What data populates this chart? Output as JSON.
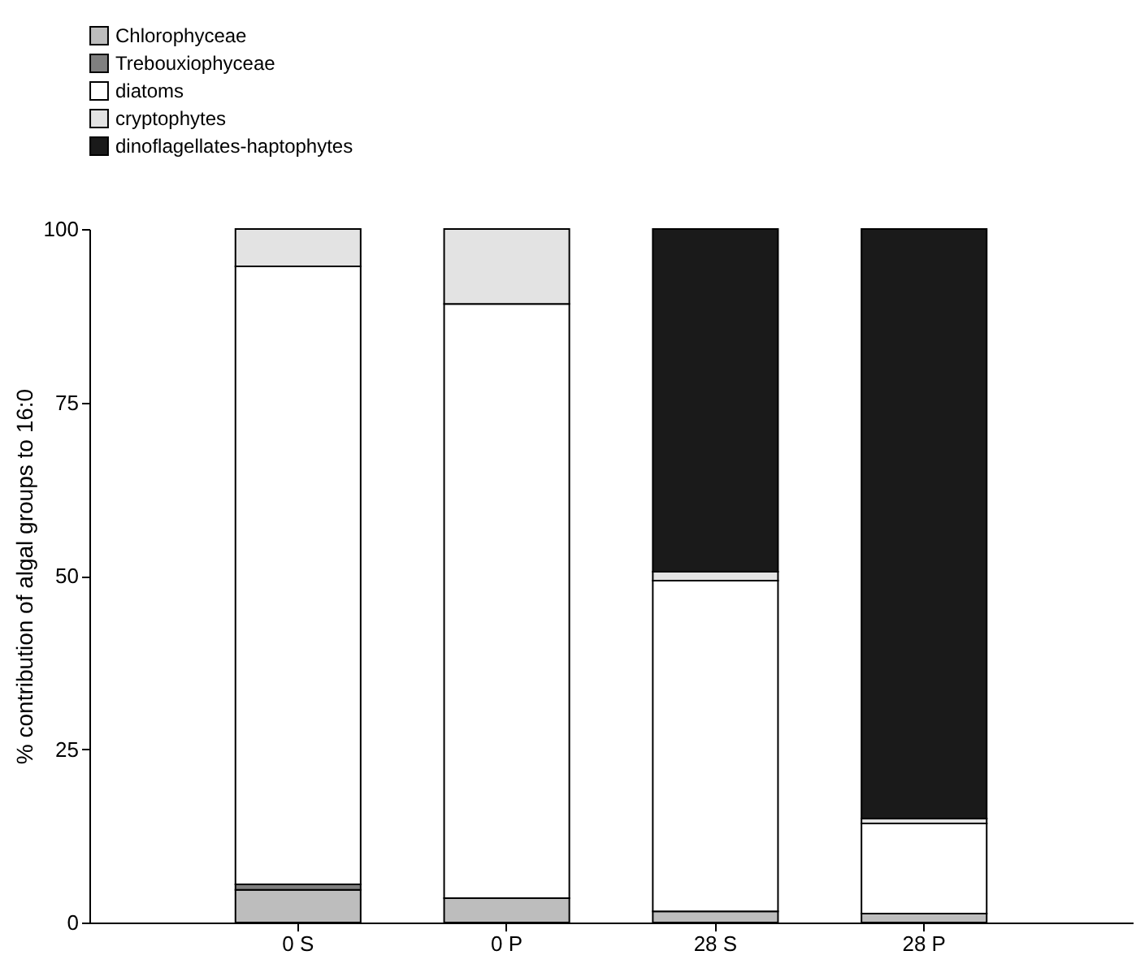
{
  "chart_data": {
    "type": "bar",
    "stacked": true,
    "ylabel": "% contribution of algal groups to 16:0",
    "categories": [
      "0 S",
      "0 P",
      "28 S",
      "28 P"
    ],
    "series": [
      {
        "name": "Chlorophyceae",
        "color": "#bdbdbd",
        "values": [
          4.7,
          3.5,
          1.6,
          1.3
        ]
      },
      {
        "name": "Trebouxiophyceae",
        "color": "#7f7f7f",
        "values": [
          0.8,
          0,
          0,
          0
        ]
      },
      {
        "name": "diatoms",
        "color": "#ffffff",
        "values": [
          89.1,
          85.7,
          47.7,
          13.0
        ]
      },
      {
        "name": "cryptophytes",
        "color": "#e3e3e3",
        "values": [
          5.4,
          10.8,
          1.3,
          0.7
        ]
      },
      {
        "name": "dinoflagellates-haptophytes",
        "color": "#1a1a1a",
        "values": [
          0,
          0,
          49.4,
          85.0
        ]
      }
    ],
    "ylim": [
      0,
      100
    ],
    "yticks": [
      0,
      25,
      50,
      75,
      100
    ],
    "grid": false,
    "legend": "top left"
  }
}
